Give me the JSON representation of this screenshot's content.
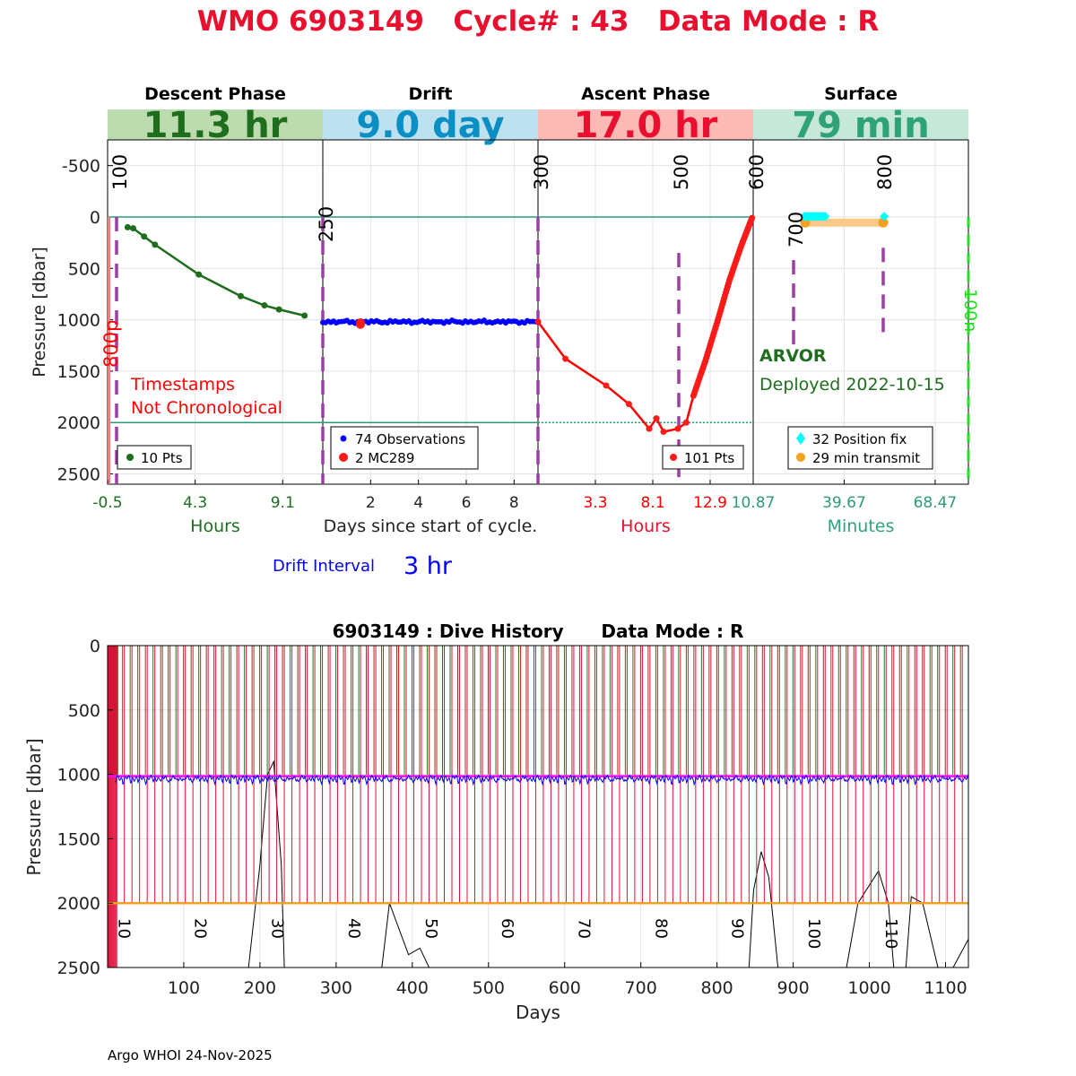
{
  "header": {
    "title": "WMO 6903149   Cycle# : 43   Data Mode : R",
    "color": "#e8102e"
  },
  "phases": [
    {
      "name": "Descent Phase",
      "duration": "11.3 hr",
      "bg": "#bcdcaf",
      "fg": "#1e6e1e"
    },
    {
      "name": "Drift",
      "duration": "9.0 day",
      "bg": "#bde1ee",
      "fg": "#0a8fc4"
    },
    {
      "name": "Ascent Phase",
      "duration": "17.0 hr",
      "bg": "#fbbab6",
      "fg": "#e8102e"
    },
    {
      "name": "Surface",
      "duration": "79 min",
      "bg": "#c6e8d8",
      "fg": "#2fa27a"
    }
  ],
  "colors": {
    "descent": "#1e6e1e",
    "drift": "#0000ff",
    "ascent": "#ff0000",
    "purple": "#9b3fa5",
    "teal": "#2e9a7a",
    "cyan": "#00ffff",
    "orange": "#f4a020",
    "lime": "#22dd22",
    "magenta": "#ff00ff",
    "history_red": "#e0103a",
    "history_green": "#1f7a1f",
    "history_brown": "#8b3a1a"
  },
  "top_chart": {
    "ylabel": "Pressure [dbar]",
    "y_ticks": [
      "-500",
      "0",
      "500",
      "1000",
      "1500",
      "2000",
      "2500"
    ],
    "y_tick_values": [
      -500,
      0,
      500,
      1000,
      1500,
      2000,
      2500
    ],
    "ylim": [
      -750,
      2600
    ],
    "xlabel_drift": "Days since start of cycle.",
    "panels": [
      {
        "xlabel": "Hours",
        "x_ticks": [
          "-0.5",
          "4.3",
          "9.1"
        ],
        "xlim": [
          -0.5,
          11.3
        ]
      },
      {
        "xlabel": "",
        "x_ticks": [
          "2",
          "4",
          "6",
          "8"
        ],
        "xlim": [
          0,
          9.0
        ]
      },
      {
        "xlabel": "Hours",
        "x_ticks": [
          "3.3",
          "8.1",
          "12.9"
        ],
        "xlim": [
          -1.5,
          16.5
        ]
      },
      {
        "xlabel": "Minutes",
        "x_ticks": [
          "10.87",
          "39.67",
          "68.47"
        ],
        "xlim": [
          10.87,
          79
        ]
      }
    ],
    "marker_labels": [
      "100",
      "250",
      "300",
      "500",
      "600",
      "700",
      "800",
      "800p",
      "100n"
    ],
    "descent_points": [
      {
        "h": 0.6,
        "p": 100
      },
      {
        "h": 0.9,
        "p": 110
      },
      {
        "h": 1.5,
        "p": 190
      },
      {
        "h": 2.1,
        "p": 270
      },
      {
        "h": 4.5,
        "p": 560
      },
      {
        "h": 6.8,
        "p": 770
      },
      {
        "h": 8.1,
        "p": 860
      },
      {
        "h": 8.9,
        "p": 900
      },
      {
        "h": 10.3,
        "p": 960
      }
    ],
    "descent_legend": "10 Pts",
    "drift_legend": [
      "74 Observations",
      "2 MC289"
    ],
    "drift_level": 1020,
    "ascent_points": [
      {
        "h": -1.5,
        "p": 1020
      },
      {
        "h": 0.8,
        "p": 1380
      },
      {
        "h": 4.2,
        "p": 1640
      },
      {
        "h": 6.1,
        "p": 1820
      },
      {
        "h": 7.8,
        "p": 2060
      },
      {
        "h": 8.4,
        "p": 1960
      },
      {
        "h": 9.0,
        "p": 2090
      },
      {
        "h": 10.2,
        "p": 2060
      },
      {
        "h": 10.9,
        "p": 2000
      },
      {
        "h": 11.5,
        "p": 1740
      },
      {
        "h": 12.5,
        "p": 1400
      },
      {
        "h": 13.5,
        "p": 1020
      },
      {
        "h": 14.5,
        "p": 620
      },
      {
        "h": 15.5,
        "p": 280
      },
      {
        "h": 16.4,
        "p": 10
      }
    ],
    "ascent_legend": "101 Pts",
    "surface_legend": [
      "32 Position fix",
      "29 min transmit"
    ],
    "timestamps_note": [
      "Timestamps",
      "Not Chronological"
    ],
    "float_type": "ARVOR",
    "deployed": "Deployed 2022-10-15",
    "drift_interval_label": "Drift Interval",
    "drift_interval_value": "3 hr"
  },
  "bottom_chart": {
    "title": "6903149 : Dive History      Data Mode : R",
    "ylabel": "Pressure [dbar]",
    "xlabel": "Days",
    "y_ticks": [
      "0",
      "500",
      "1000",
      "1500",
      "2000",
      "2500"
    ],
    "y_tick_values": [
      0,
      500,
      1000,
      1500,
      2000,
      2500
    ],
    "x_ticks": [
      "100",
      "200",
      "300",
      "400",
      "500",
      "600",
      "700",
      "800",
      "900",
      "1000",
      "1100"
    ],
    "x_tick_values": [
      100,
      200,
      300,
      400,
      500,
      600,
      700,
      800,
      900,
      1000,
      1100
    ],
    "xlim": [
      0,
      1130
    ],
    "ylim": [
      0,
      2500
    ],
    "cycle_labels": [
      "10",
      "20",
      "30",
      "40",
      "50",
      "60",
      "70",
      "80",
      "90",
      "100",
      "110"
    ],
    "cycle_label_days": [
      10,
      110,
      211,
      312,
      413,
      513,
      614,
      715,
      815,
      916,
      1017
    ],
    "park_pressure": 1000,
    "profile_pressure": 2000,
    "cycle_period_days": 10
  },
  "footer": "Argo WHOI 24-Nov-2025"
}
